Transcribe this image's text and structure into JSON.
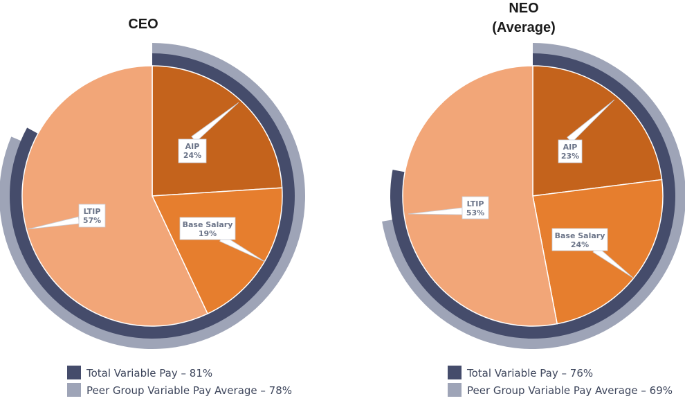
{
  "chart_data": [
    {
      "type": "pie",
      "title": "CEO",
      "slices": [
        {
          "label": "AIP",
          "value": 24,
          "value_label": "24%",
          "color": "#c4631c"
        },
        {
          "label": "Base Salary",
          "value": 19,
          "value_label": "19%",
          "color": "#e67e2e"
        },
        {
          "label": "LTIP",
          "value": 57,
          "value_label": "57%",
          "color": "#f2a678"
        }
      ],
      "rings": [
        {
          "name": "Total Variable Pay",
          "percent": 81,
          "legend": "Total Variable Pay – 81%",
          "color": "#454c6b"
        },
        {
          "name": "Peer Group Variable Pay Average",
          "percent": 78,
          "legend": "Peer Group Variable Pay Average – 78%",
          "color": "#9ea4b7"
        }
      ]
    },
    {
      "type": "pie",
      "title": "NEO\n(Average)",
      "slices": [
        {
          "label": "AIP",
          "value": 23,
          "value_label": "23%",
          "color": "#c4631c"
        },
        {
          "label": "Base Salary",
          "value": 24,
          "value_label": "24%",
          "color": "#e67e2e"
        },
        {
          "label": "LTIP",
          "value": 53,
          "value_label": "53%",
          "color": "#f2a678"
        }
      ],
      "rings": [
        {
          "name": "Total Variable Pay",
          "percent": 76,
          "legend": "Total Variable Pay – 76%",
          "color": "#454c6b"
        },
        {
          "name": "Peer Group Variable Pay Average",
          "percent": 69,
          "legend": "Peer Group Variable Pay Average – 69%",
          "color": "#9ea4b7"
        }
      ]
    }
  ]
}
